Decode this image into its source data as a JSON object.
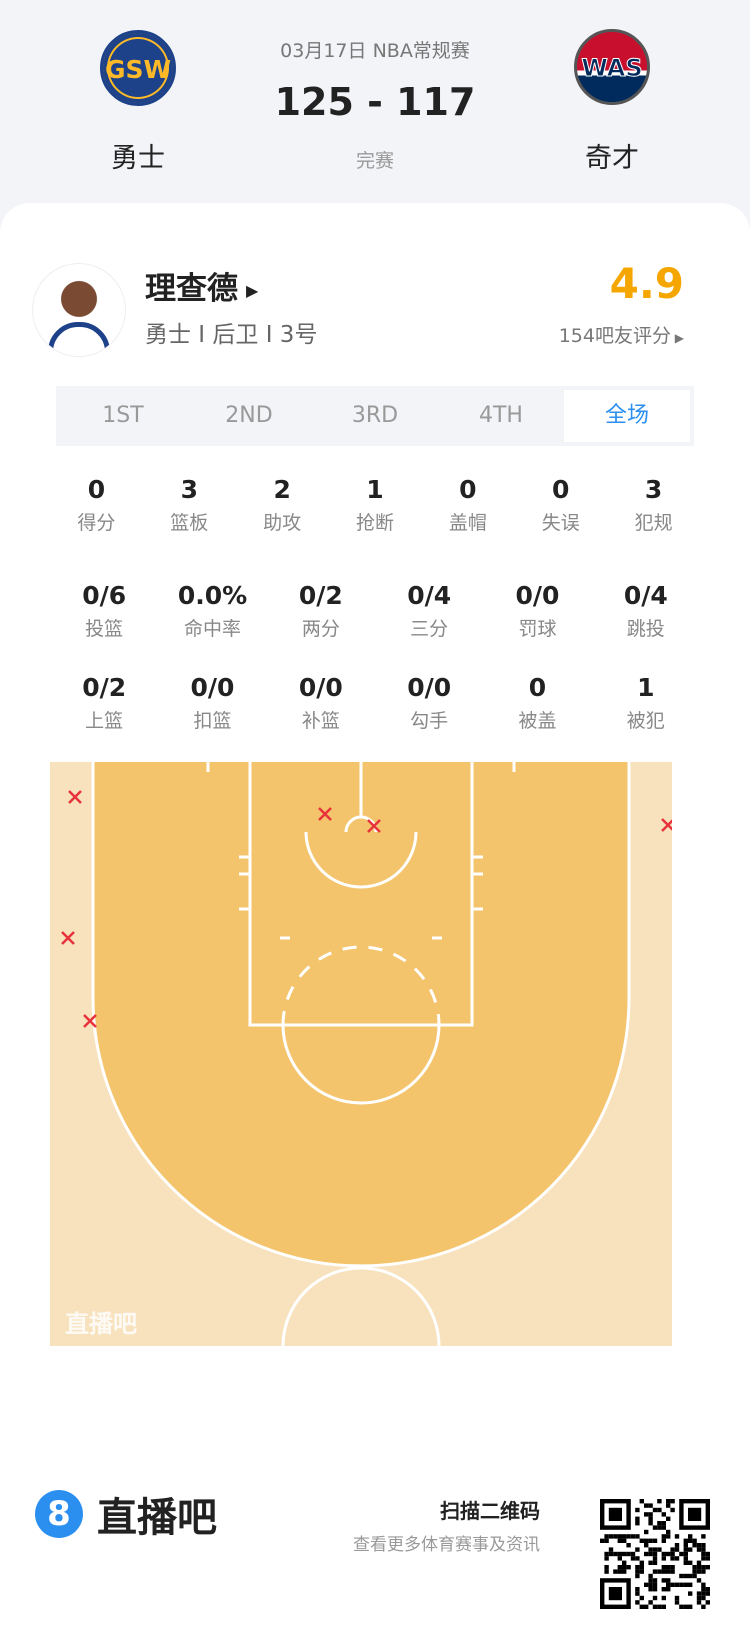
{
  "match": {
    "date_league": "03月17日 NBA常规赛",
    "score": "125 - 117",
    "status": "完赛",
    "home": {
      "abbr": "GSW",
      "name": "勇士",
      "color": "#1d428a"
    },
    "away": {
      "abbr": "WAS",
      "name": "奇才",
      "color": "#c8102e"
    }
  },
  "player": {
    "name": "理查德",
    "info": "勇士 I 后卫 I 3号",
    "rating": "4.9",
    "raters": "154吧友评分"
  },
  "tabs": [
    {
      "label": "1ST"
    },
    {
      "label": "2ND"
    },
    {
      "label": "3RD"
    },
    {
      "label": "4TH"
    },
    {
      "label": "全场",
      "active": true
    }
  ],
  "stats_row1": [
    {
      "v": "0",
      "l": "得分"
    },
    {
      "v": "3",
      "l": "篮板"
    },
    {
      "v": "2",
      "l": "助攻"
    },
    {
      "v": "1",
      "l": "抢断"
    },
    {
      "v": "0",
      "l": "盖帽"
    },
    {
      "v": "0",
      "l": "失误"
    },
    {
      "v": "3",
      "l": "犯规"
    }
  ],
  "stats_row2": [
    {
      "v": "0/6",
      "l": "投篮"
    },
    {
      "v": "0.0%",
      "l": "命中率"
    },
    {
      "v": "0/2",
      "l": "两分"
    },
    {
      "v": "0/4",
      "l": "三分"
    },
    {
      "v": "0/0",
      "l": "罚球"
    },
    {
      "v": "0/4",
      "l": "跳投"
    }
  ],
  "stats_row3": [
    {
      "v": "0/2",
      "l": "上篮"
    },
    {
      "v": "0/0",
      "l": "扣篮"
    },
    {
      "v": "0/0",
      "l": "补篮"
    },
    {
      "v": "0/0",
      "l": "勾手"
    },
    {
      "v": "0",
      "l": "被盖"
    },
    {
      "v": "1",
      "l": "被犯"
    }
  ],
  "shot_chart": {
    "watermark": "直播吧",
    "made": 0,
    "missed": 6,
    "miss_color": "#e8323c"
  },
  "footer": {
    "brand_mark": "8",
    "brand": "直播吧",
    "scan_title": "扫描二维码",
    "scan_sub": "查看更多体育赛事及资讯"
  },
  "colors": {
    "accent": "#2b8ff0",
    "rating": "#f5a600"
  }
}
